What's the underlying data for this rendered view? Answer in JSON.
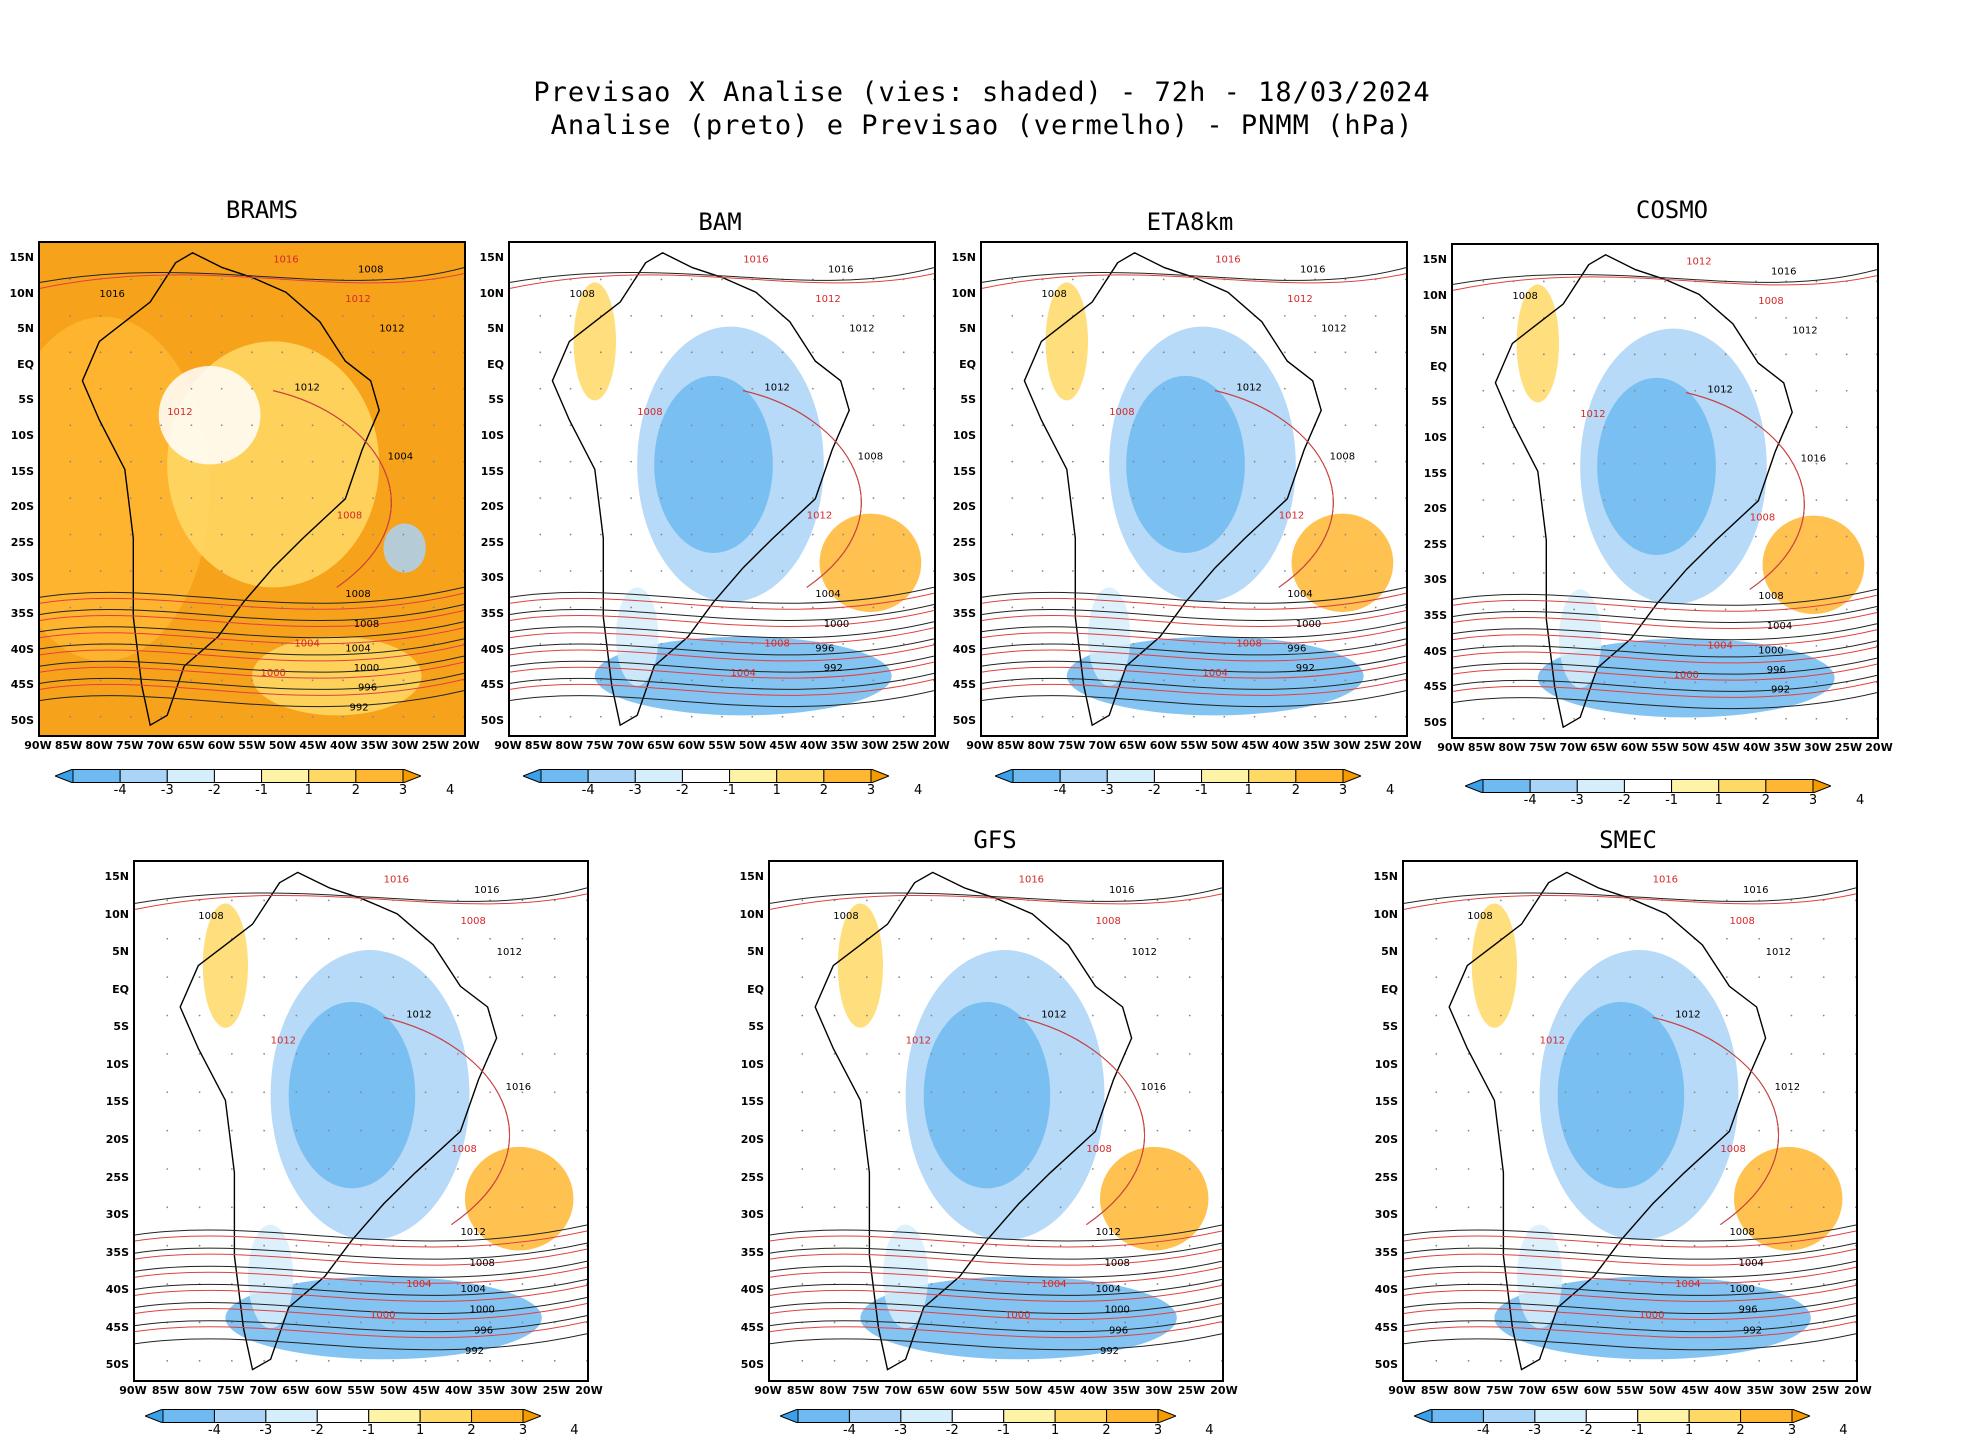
{
  "title_line1": "Previsao X Analise (vies: shaded) - 72h - 18/03/2024",
  "title_line2": "Analise (preto) e Previsao (vermelho) - PNMM (hPa)",
  "lat_labels": [
    "15N",
    "10N",
    "5N",
    "EQ",
    "5S",
    "10S",
    "15S",
    "20S",
    "25S",
    "30S",
    "35S",
    "40S",
    "45S",
    "50S"
  ],
  "lon_labels": [
    "90W",
    "85W",
    "80W",
    "75W",
    "70W",
    "65W",
    "60W",
    "55W",
    "50W",
    "45W",
    "40W",
    "35W",
    "30W",
    "25W",
    "20W"
  ],
  "colorbar": {
    "labels": [
      "-4",
      "-3",
      "-2",
      "-1",
      "1",
      "2",
      "3",
      "4"
    ],
    "colors": [
      "#3aa0e8",
      "#6fbaf0",
      "#a9d4f7",
      "#d6eefc",
      "#ffffff",
      "#fff3a8",
      "#ffd966",
      "#ffb733",
      "#f59b00"
    ]
  },
  "panels": [
    {
      "name": "BRAMS",
      "contours": [
        "1008",
        "1016",
        "1012",
        "1012",
        "1004",
        "1008",
        "1008",
        "1004",
        "1000",
        "996",
        "992"
      ],
      "red_contours": [
        "1016",
        "1012",
        "1012",
        "1008",
        "1004",
        "1000"
      ]
    },
    {
      "name": "BAM",
      "contours": [
        "1016",
        "1008",
        "1012",
        "1012",
        "1008",
        "1004",
        "1000",
        "996",
        "992"
      ],
      "red_contours": [
        "1016",
        "1012",
        "1008",
        "1012",
        "1008",
        "1004"
      ]
    },
    {
      "name": "ETA8km",
      "contours": [
        "1016",
        "1008",
        "1012",
        "1012",
        "1008",
        "1004",
        "1000",
        "996",
        "992"
      ],
      "red_contours": [
        "1016",
        "1012",
        "1008",
        "1012",
        "1008",
        "1004"
      ]
    },
    {
      "name": "COSMO",
      "contours": [
        "1016",
        "1008",
        "1012",
        "1012",
        "1016",
        "1008",
        "1004",
        "1000",
        "996",
        "992"
      ],
      "red_contours": [
        "1012",
        "1008",
        "1012",
        "1008",
        "1004",
        "1000"
      ]
    },
    {
      "name": "",
      "contours": [
        "1016",
        "1008",
        "1012",
        "1012",
        "1016",
        "1012",
        "1008",
        "1004",
        "1000",
        "996",
        "992"
      ],
      "red_contours": [
        "1016",
        "1008",
        "1012",
        "1008",
        "1004",
        "1000"
      ]
    },
    {
      "name": "GFS",
      "contours": [
        "1016",
        "1008",
        "1012",
        "1012",
        "1016",
        "1012",
        "1008",
        "1004",
        "1000",
        "996",
        "992"
      ],
      "red_contours": [
        "1016",
        "1008",
        "1012",
        "1008",
        "1004",
        "1000"
      ]
    },
    {
      "name": "SMEC",
      "contours": [
        "1016",
        "1008",
        "1012",
        "1012",
        "1012",
        "1008",
        "1004",
        "1000",
        "996",
        "992"
      ],
      "red_contours": [
        "1016",
        "1008",
        "1012",
        "1008",
        "1004",
        "1000"
      ]
    }
  ]
}
